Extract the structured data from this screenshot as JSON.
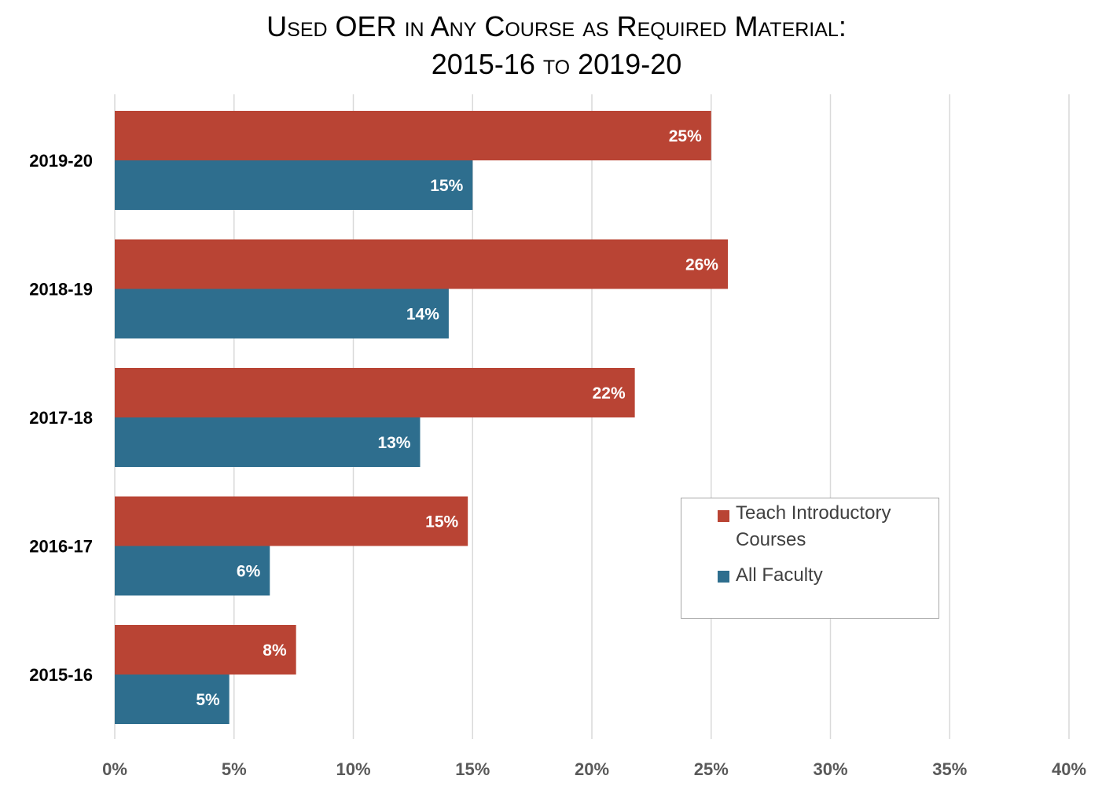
{
  "chart_data": {
    "type": "bar",
    "orientation": "horizontal",
    "title_line1": "Used OER in Any Course as Required Material:",
    "title_line2": "2015-16 to 2019-20",
    "categories": [
      "2019-20",
      "2018-19",
      "2017-18",
      "2016-17",
      "2015-16"
    ],
    "series": [
      {
        "name": "Teach Introductory Courses",
        "color": "#b94434",
        "values": [
          25,
          25.7,
          21.8,
          14.8,
          7.6
        ],
        "labels": [
          "25%",
          "26%",
          "22%",
          "15%",
          "8%"
        ]
      },
      {
        "name": "All Faculty",
        "color": "#2e6e8e",
        "values": [
          15,
          14,
          12.8,
          6.5,
          4.8
        ],
        "labels": [
          "15%",
          "14%",
          "13%",
          "6%",
          "5%"
        ]
      }
    ],
    "xlim": [
      0,
      40
    ],
    "xticks": [
      0,
      5,
      10,
      15,
      20,
      25,
      30,
      35,
      40
    ],
    "xtick_labels": [
      "0%",
      "5%",
      "10%",
      "15%",
      "20%",
      "25%",
      "30%",
      "35%",
      "40%"
    ],
    "grid": true,
    "legend_position": "right",
    "legend": {
      "items": [
        {
          "lines": [
            "Teach Introductory",
            "Courses"
          ],
          "color": "#b94434"
        },
        {
          "lines": [
            "All Faculty"
          ],
          "color": "#2e6e8e"
        }
      ]
    }
  }
}
